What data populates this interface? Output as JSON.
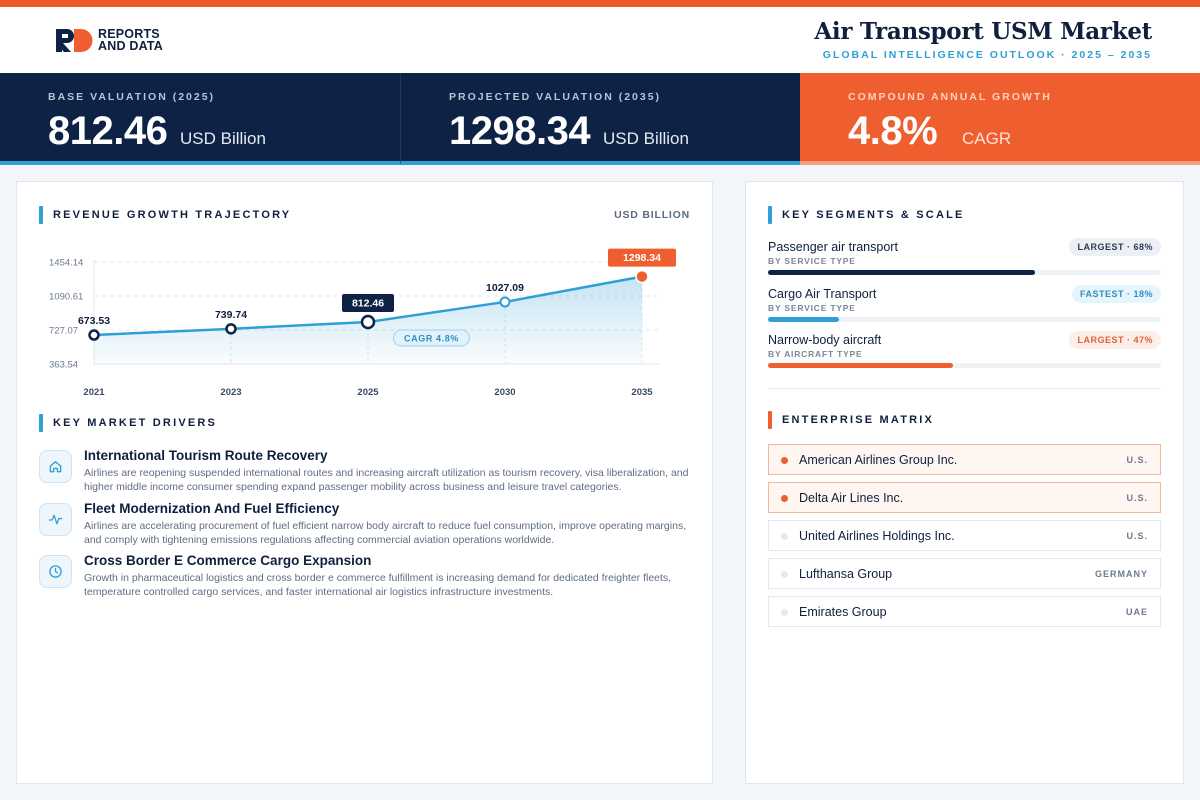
{
  "brand": {
    "logo_line1": "REPORTS",
    "logo_line2": "AND DATA"
  },
  "header": {
    "title": "Air Transport USM Market",
    "subtitle": "GLOBAL INTELLIGENCE OUTLOOK  ·  2025 – 2035"
  },
  "colors": {
    "navy": "#0e2246",
    "accent_blue": "#2f9fd5",
    "accent_orange": "#ee5e2e"
  },
  "kpis": [
    {
      "label": "BASE VALUATION (2025)",
      "value": "812.46",
      "unit": "USD Billion"
    },
    {
      "label": "PROJECTED VALUATION (2035)",
      "value": "1298.34",
      "unit": "USD Billion"
    },
    {
      "label": "COMPOUND ANNUAL GROWTH",
      "value": "4.8%",
      "unit": "CAGR"
    }
  ],
  "trajectory": {
    "title": "REVENUE GROWTH TRAJECTORY",
    "unit": "USD BILLION"
  },
  "chart_data": {
    "type": "area",
    "categories": [
      "2021",
      "2023",
      "2025",
      "2030",
      "2035"
    ],
    "values": [
      673.53,
      739.74,
      812.46,
      1027.09,
      1298.34
    ],
    "value_labels": [
      "673.53",
      "739.74",
      "812.46",
      "1027.09",
      "1298.34"
    ],
    "y_ticks": [
      "1454.14",
      "1090.61",
      "727.07",
      "363.54"
    ],
    "y_tick_values": [
      1454.14,
      1090.61,
      727.07,
      363.54
    ],
    "ylim": [
      363.54,
      1454.14
    ],
    "annotation": "CAGR 4.8%",
    "highlight_indices": [
      2,
      4
    ],
    "grid": true
  },
  "drivers": {
    "title": "KEY MARKET DRIVERS",
    "items": [
      {
        "icon": "home-icon",
        "title": "International Tourism Route Recovery",
        "desc": "Airlines are reopening suspended international routes and increasing aircraft utilization as tourism recovery, visa liberalization, and higher middle income consumer spending expand passenger mobility across business and leisure travel categories."
      },
      {
        "icon": "activity-icon",
        "title": "Fleet Modernization And Fuel Efficiency",
        "desc": "Airlines are accelerating procurement of fuel efficient narrow body aircraft to reduce fuel consumption, improve operating margins, and comply with tightening emissions regulations affecting commercial aviation operations worldwide."
      },
      {
        "icon": "clock-icon",
        "title": "Cross Border E Commerce Cargo Expansion",
        "desc": "Growth in pharmaceutical logistics and cross border e commerce fulfillment is increasing demand for dedicated freighter fleets, temperature controlled cargo services, and faster international air logistics infrastructure investments."
      }
    ]
  },
  "segments": {
    "title": "KEY SEGMENTS & SCALE",
    "items": [
      {
        "name": "Passenger air transport",
        "sub": "BY SERVICE TYPE",
        "badge": "LARGEST · 68%",
        "share": 0.68,
        "color": "#0e2246",
        "badge_bg": "#eceff4",
        "badge_fg": "#2b3b55"
      },
      {
        "name": "Cargo Air Transport",
        "sub": "BY SERVICE TYPE",
        "badge": "FASTEST · 18%",
        "share": 0.18,
        "color": "#2f9fd5",
        "badge_bg": "#e6f4fb",
        "badge_fg": "#2f8fc2"
      },
      {
        "name": "Narrow-body aircraft",
        "sub": "BY AIRCRAFT TYPE",
        "badge": "LARGEST · 47%",
        "share": 0.47,
        "color": "#ee5e2e",
        "badge_bg": "#fdeee8",
        "badge_fg": "#e0603a"
      }
    ]
  },
  "matrix": {
    "title": "ENTERPRISE MATRIX",
    "rows": [
      {
        "name": "American Airlines Group Inc.",
        "country": "U.S.",
        "highlight": true
      },
      {
        "name": "Delta Air Lines Inc.",
        "country": "U.S.",
        "highlight": true
      },
      {
        "name": "United Airlines Holdings Inc.",
        "country": "U.S.",
        "highlight": false
      },
      {
        "name": "Lufthansa Group",
        "country": "GERMANY",
        "highlight": false
      },
      {
        "name": "Emirates Group",
        "country": "UAE",
        "highlight": false
      }
    ]
  }
}
